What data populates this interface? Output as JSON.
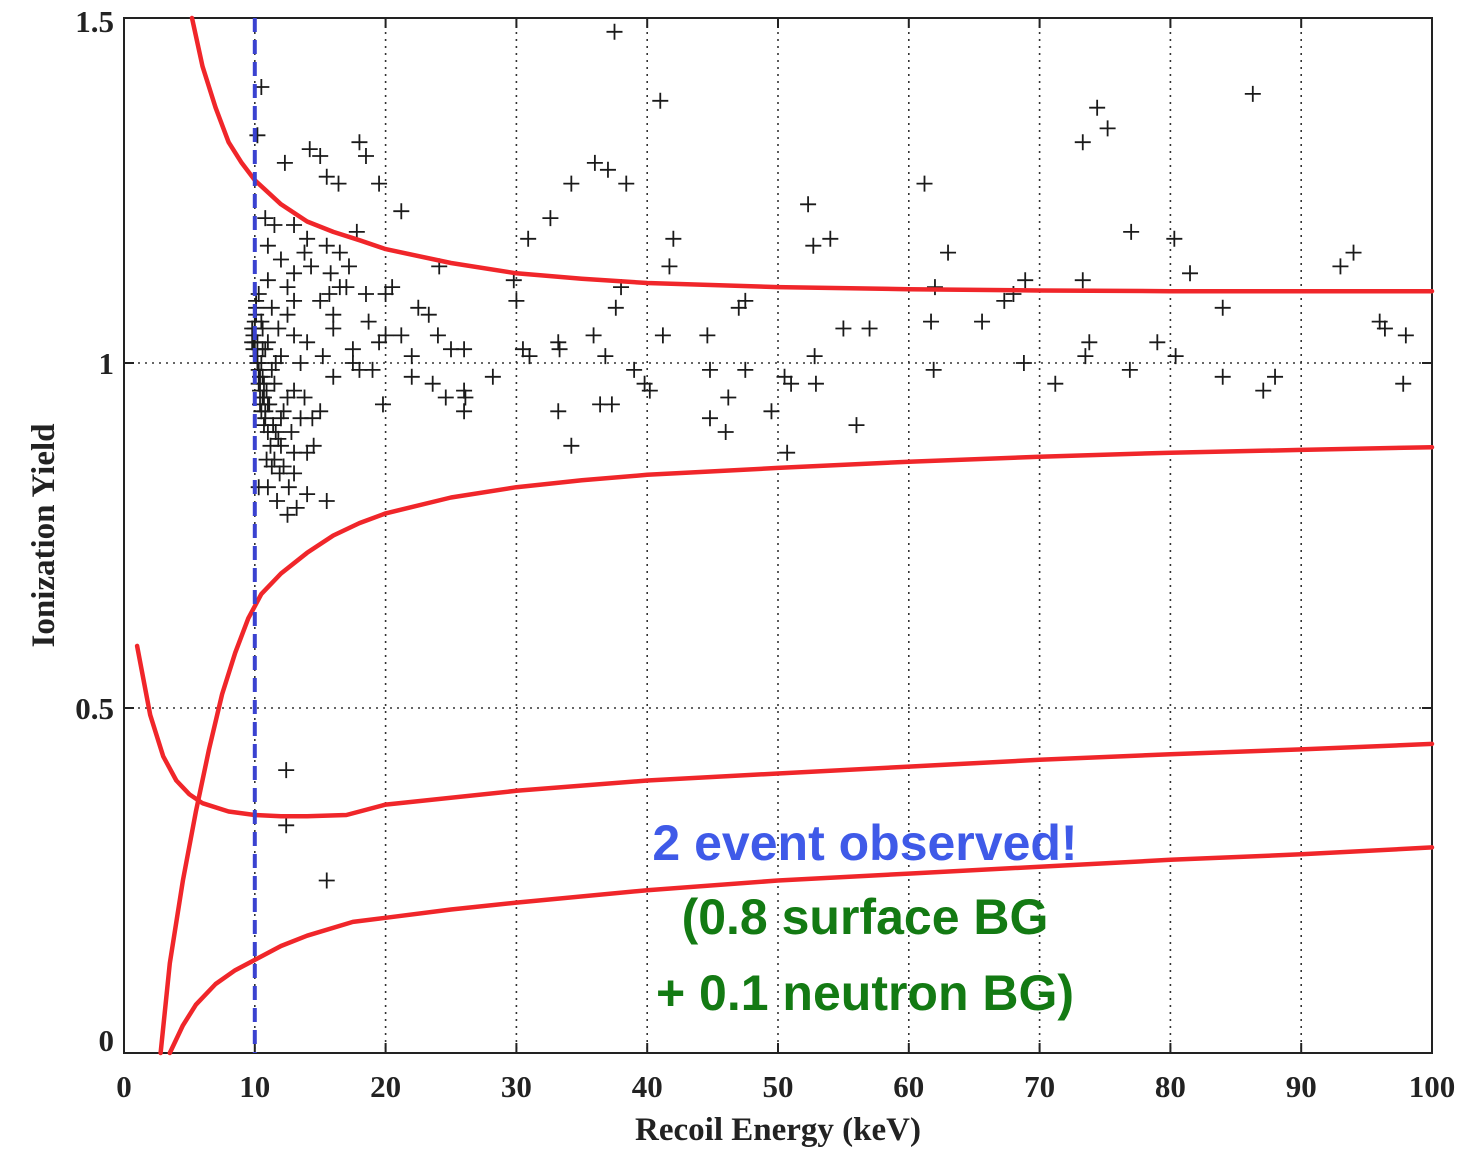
{
  "chart_data": {
    "type": "scatter",
    "title": "",
    "xlabel": "Recoil Energy (keV)",
    "ylabel": "Ionization Yield",
    "xlim": [
      0,
      100
    ],
    "ylim": [
      0,
      1.5
    ],
    "grid": true,
    "x_ticks": [
      "0",
      "10",
      "20",
      "30",
      "40",
      "50",
      "60",
      "70",
      "80",
      "90",
      "100"
    ],
    "y_ticks": [
      "0",
      "0.5",
      "1",
      "1.5"
    ],
    "colors": {
      "curves": "#f0262a",
      "threshold": "#3a42d0",
      "points": "#1a1a1a",
      "annotation_line1": "#3f5ae8",
      "annotation_lines": "#137a13"
    },
    "threshold_line": {
      "x": 10,
      "style": "dashed"
    },
    "annotation": [
      "2 event observed!",
      "(0.8 surface BG",
      "+ 0.1 neutron BG)"
    ],
    "curves": [
      {
        "x": [
          5.2,
          6,
          7,
          8,
          9,
          10,
          12,
          14,
          16,
          18,
          20,
          25,
          30,
          35,
          40,
          50,
          60,
          70,
          80,
          90,
          100
        ],
        "y": [
          1.5,
          1.43,
          1.37,
          1.32,
          1.29,
          1.265,
          1.23,
          1.205,
          1.19,
          1.178,
          1.165,
          1.145,
          1.13,
          1.122,
          1.116,
          1.11,
          1.107,
          1.105,
          1.104,
          1.104,
          1.104
        ]
      },
      {
        "x": [
          2.8,
          3.5,
          4.5,
          5.5,
          6.5,
          7.5,
          8.5,
          9.5,
          10.5,
          12,
          14,
          16,
          18,
          20,
          25,
          30,
          35,
          40,
          50,
          60,
          70,
          80,
          90,
          100
        ],
        "y": [
          0,
          0.13,
          0.25,
          0.35,
          0.44,
          0.52,
          0.58,
          0.63,
          0.665,
          0.695,
          0.725,
          0.75,
          0.768,
          0.782,
          0.805,
          0.82,
          0.83,
          0.838,
          0.848,
          0.857,
          0.864,
          0.87,
          0.874,
          0.878
        ]
      },
      {
        "x": [
          1,
          2,
          3,
          4,
          5,
          6,
          8,
          10,
          12,
          14,
          17,
          20,
          30,
          40,
          50,
          60,
          70,
          80,
          90,
          100
        ],
        "y": [
          0.59,
          0.49,
          0.43,
          0.395,
          0.375,
          0.362,
          0.35,
          0.345,
          0.343,
          0.343,
          0.345,
          0.36,
          0.38,
          0.395,
          0.405,
          0.415,
          0.425,
          0.433,
          0.44,
          0.448
        ]
      },
      {
        "x": [
          3.5,
          4.5,
          5.5,
          7,
          8.5,
          10,
          12,
          14,
          17.5,
          20,
          25,
          30,
          40,
          50,
          60,
          70,
          80,
          90,
          100
        ],
        "y": [
          0,
          0.04,
          0.07,
          0.1,
          0.12,
          0.135,
          0.155,
          0.17,
          0.19,
          0.196,
          0.208,
          0.218,
          0.236,
          0.25,
          0.26,
          0.27,
          0.28,
          0.288,
          0.298
        ]
      }
    ],
    "points": [
      [
        37.5,
        1.48
      ],
      [
        10.5,
        1.4
      ],
      [
        41.0,
        1.38
      ],
      [
        86.3,
        1.39
      ],
      [
        74.4,
        1.37
      ],
      [
        75.2,
        1.34
      ],
      [
        73.3,
        1.32
      ],
      [
        10.2,
        1.33
      ],
      [
        14.2,
        1.31
      ],
      [
        15.0,
        1.3
      ],
      [
        18.0,
        1.32
      ],
      [
        18.5,
        1.3
      ],
      [
        12.3,
        1.29
      ],
      [
        36.0,
        1.29
      ],
      [
        37.0,
        1.28
      ],
      [
        38.4,
        1.26
      ],
      [
        15.5,
        1.27
      ],
      [
        16.4,
        1.26
      ],
      [
        19.5,
        1.26
      ],
      [
        34.2,
        1.26
      ],
      [
        61.2,
        1.26
      ],
      [
        52.3,
        1.23
      ],
      [
        21.2,
        1.22
      ],
      [
        32.6,
        1.21
      ],
      [
        10.8,
        1.21
      ],
      [
        11.5,
        1.2
      ],
      [
        13.0,
        1.2
      ],
      [
        14.0,
        1.18
      ],
      [
        17.8,
        1.19
      ],
      [
        30.9,
        1.18
      ],
      [
        42.0,
        1.18
      ],
      [
        54.0,
        1.18
      ],
      [
        77.0,
        1.19
      ],
      [
        80.3,
        1.18
      ],
      [
        11.0,
        1.17
      ],
      [
        13.8,
        1.16
      ],
      [
        15.5,
        1.17
      ],
      [
        16.5,
        1.16
      ],
      [
        52.7,
        1.17
      ],
      [
        94.0,
        1.16
      ],
      [
        63.0,
        1.16
      ],
      [
        12.0,
        1.15
      ],
      [
        14.3,
        1.14
      ],
      [
        15.8,
        1.13
      ],
      [
        17.2,
        1.14
      ],
      [
        24.1,
        1.14
      ],
      [
        41.7,
        1.14
      ],
      [
        81.5,
        1.13
      ],
      [
        93.0,
        1.14
      ],
      [
        13.0,
        1.13
      ],
      [
        16.5,
        1.11
      ],
      [
        29.8,
        1.12
      ],
      [
        68.9,
        1.12
      ],
      [
        73.3,
        1.12
      ],
      [
        11.0,
        1.12
      ],
      [
        12.5,
        1.11
      ],
      [
        17.0,
        1.11
      ],
      [
        20.0,
        1.1
      ],
      [
        20.5,
        1.11
      ],
      [
        38.0,
        1.11
      ],
      [
        62.0,
        1.11
      ],
      [
        68.0,
        1.1
      ],
      [
        10.3,
        1.1
      ],
      [
        13.0,
        1.09
      ],
      [
        15.0,
        1.09
      ],
      [
        15.7,
        1.1
      ],
      [
        18.5,
        1.1
      ],
      [
        30.0,
        1.09
      ],
      [
        47.5,
        1.09
      ],
      [
        67.3,
        1.09
      ],
      [
        11.3,
        1.08
      ],
      [
        12.5,
        1.07
      ],
      [
        16.0,
        1.07
      ],
      [
        22.5,
        1.08
      ],
      [
        23.3,
        1.07
      ],
      [
        37.6,
        1.08
      ],
      [
        47.0,
        1.08
      ],
      [
        84.0,
        1.08
      ],
      [
        10.5,
        1.06
      ],
      [
        11.8,
        1.05
      ],
      [
        13.0,
        1.04
      ],
      [
        16.0,
        1.05
      ],
      [
        18.7,
        1.06
      ],
      [
        20.0,
        1.04
      ],
      [
        21.2,
        1.04
      ],
      [
        55.0,
        1.05
      ],
      [
        57.0,
        1.05
      ],
      [
        61.7,
        1.06
      ],
      [
        65.6,
        1.06
      ],
      [
        96.0,
        1.06
      ],
      [
        96.4,
        1.05
      ],
      [
        10.0,
        1.03
      ],
      [
        10.8,
        1.02
      ],
      [
        12.0,
        1.01
      ],
      [
        14.0,
        1.03
      ],
      [
        17.5,
        1.02
      ],
      [
        19.5,
        1.03
      ],
      [
        24.0,
        1.04
      ],
      [
        25.0,
        1.02
      ],
      [
        33.2,
        1.03
      ],
      [
        35.9,
        1.04
      ],
      [
        41.2,
        1.04
      ],
      [
        44.6,
        1.04
      ],
      [
        73.8,
        1.03
      ],
      [
        79.0,
        1.03
      ],
      [
        98.0,
        1.04
      ],
      [
        10.2,
        1.0
      ],
      [
        11.3,
        0.99
      ],
      [
        13.5,
        1.0
      ],
      [
        15.2,
        1.01
      ],
      [
        17.5,
        1.0
      ],
      [
        19.0,
        0.99
      ],
      [
        22.0,
        1.01
      ],
      [
        26.0,
        1.02
      ],
      [
        30.5,
        1.02
      ],
      [
        31.0,
        1.01
      ],
      [
        33.3,
        1.02
      ],
      [
        36.8,
        1.01
      ],
      [
        39.0,
        0.99
      ],
      [
        44.8,
        0.99
      ],
      [
        50.5,
        0.98
      ],
      [
        52.8,
        1.01
      ],
      [
        73.5,
        1.01
      ],
      [
        80.4,
        1.01
      ],
      [
        10.4,
        0.98
      ],
      [
        11.5,
        0.97
      ],
      [
        13.0,
        0.96
      ],
      [
        16.0,
        0.98
      ],
      [
        18.0,
        0.99
      ],
      [
        22.0,
        0.98
      ],
      [
        23.6,
        0.97
      ],
      [
        26.0,
        0.96
      ],
      [
        28.2,
        0.98
      ],
      [
        39.8,
        0.97
      ],
      [
        40.2,
        0.96
      ],
      [
        47.5,
        0.99
      ],
      [
        52.9,
        0.97
      ],
      [
        61.9,
        0.99
      ],
      [
        68.8,
        1.0
      ],
      [
        71.2,
        0.97
      ],
      [
        76.9,
        0.99
      ],
      [
        84.0,
        0.98
      ],
      [
        87.1,
        0.96
      ],
      [
        88.0,
        0.98
      ],
      [
        97.8,
        0.97
      ],
      [
        10.6,
        0.95
      ],
      [
        11.0,
        0.94
      ],
      [
        12.2,
        0.93
      ],
      [
        13.8,
        0.95
      ],
      [
        14.4,
        0.92
      ],
      [
        15.0,
        0.93
      ],
      [
        19.8,
        0.94
      ],
      [
        24.6,
        0.95
      ],
      [
        26.1,
        0.95
      ],
      [
        33.2,
        0.93
      ],
      [
        36.4,
        0.94
      ],
      [
        37.3,
        0.94
      ],
      [
        46.2,
        0.95
      ],
      [
        51.0,
        0.97
      ],
      [
        49.5,
        0.93
      ],
      [
        10.7,
        0.91
      ],
      [
        11.6,
        0.9
      ],
      [
        12.0,
        0.88
      ],
      [
        13.0,
        0.87
      ],
      [
        14.0,
        0.87
      ],
      [
        26.0,
        0.93
      ],
      [
        44.8,
        0.92
      ],
      [
        46.0,
        0.9
      ],
      [
        56.0,
        0.91
      ],
      [
        34.2,
        0.88
      ],
      [
        10.9,
        0.86
      ],
      [
        11.3,
        0.85
      ],
      [
        11.9,
        0.84
      ],
      [
        12.6,
        0.82
      ],
      [
        14.0,
        0.81
      ],
      [
        15.5,
        0.8
      ],
      [
        50.7,
        0.87
      ],
      [
        11.0,
        0.82
      ],
      [
        11.7,
        0.8
      ],
      [
        12.5,
        0.78
      ],
      [
        13.2,
        0.79
      ],
      [
        10.3,
        0.82
      ],
      [
        12.4,
        0.41
      ],
      [
        12.4,
        0.33
      ],
      [
        15.5,
        0.25
      ],
      [
        9.9,
        1.02
      ],
      [
        9.9,
        1.04
      ],
      [
        10.0,
        1.05
      ],
      [
        10.0,
        1.06
      ],
      [
        10.1,
        1.07
      ],
      [
        10.1,
        1.08
      ],
      [
        10.2,
        1.03
      ],
      [
        10.2,
        1.01
      ],
      [
        10.3,
        0.99
      ],
      [
        10.3,
        0.97
      ],
      [
        10.4,
        0.96
      ],
      [
        10.4,
        0.94
      ],
      [
        10.5,
        0.93
      ],
      [
        10.5,
        1.0
      ],
      [
        10.6,
        0.98
      ],
      [
        10.6,
        1.02
      ],
      [
        10.7,
        0.97
      ],
      [
        10.7,
        0.95
      ],
      [
        10.8,
        0.93
      ],
      [
        10.8,
        0.92
      ],
      [
        10.9,
        0.96
      ],
      [
        11.0,
        0.9
      ],
      [
        11.1,
        0.94
      ],
      [
        11.2,
        0.88
      ],
      [
        11.4,
        0.91
      ],
      [
        11.5,
        0.86
      ],
      [
        11.8,
        0.89
      ],
      [
        12.0,
        0.92
      ],
      [
        12.2,
        0.85
      ],
      [
        12.5,
        0.95
      ],
      [
        12.8,
        0.9
      ],
      [
        13.0,
        0.84
      ],
      [
        13.5,
        0.92
      ],
      [
        14.5,
        0.88
      ],
      [
        9.8,
        1.05
      ],
      [
        9.8,
        1.03
      ],
      [
        10.1,
        1.09
      ],
      [
        10.6,
        1.05
      ],
      [
        11.0,
        1.03
      ],
      [
        11.6,
        1.0
      ]
    ]
  }
}
